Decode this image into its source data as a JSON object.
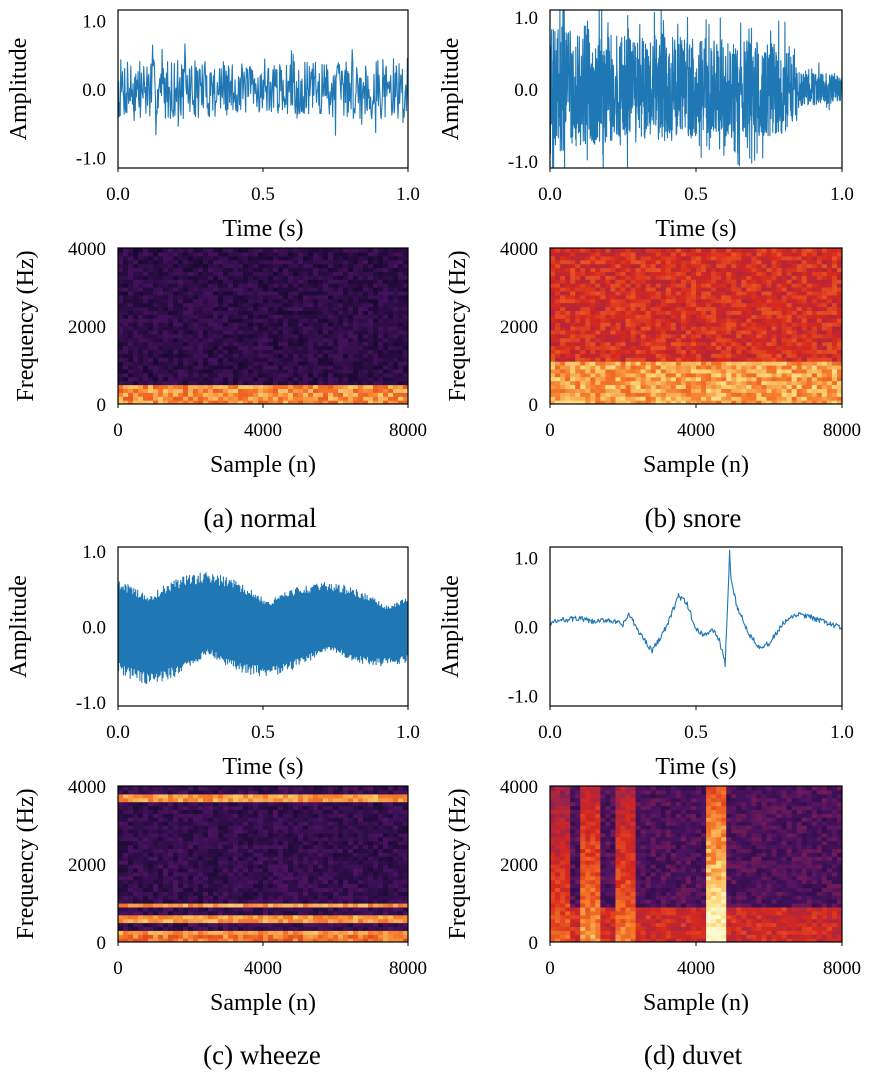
{
  "colors": {
    "waveform": "#1f77b4",
    "axis": "#000000"
  },
  "chart_data": [
    {
      "id": "a-wave",
      "type": "line",
      "panel": "a",
      "signal": "normal",
      "xlabel": "Time (s)",
      "ylabel": "Amplitude",
      "xlim": [
        0.0,
        1.0
      ],
      "ylim": [
        -1.15,
        1.15
      ],
      "x_ticks": [
        "0.0",
        "0.5",
        "1.0"
      ],
      "y_ticks": [
        "1.0",
        "0.0",
        "-1.0"
      ],
      "series": [
        {
          "name": "normal",
          "style": "noise",
          "amplitude": 0.45,
          "peak": 0.85,
          "envelope": [
            [
              0,
              1
            ],
            [
              0.3,
              0.95
            ],
            [
              0.5,
              0.75
            ],
            [
              0.75,
              0.95
            ],
            [
              1,
              1
            ]
          ]
        }
      ]
    },
    {
      "id": "b-wave",
      "type": "line",
      "panel": "b",
      "signal": "snore",
      "xlabel": "Time (s)",
      "ylabel": "Amplitude",
      "xlim": [
        0.0,
        1.0
      ],
      "ylim": [
        -1.1,
        1.1
      ],
      "x_ticks": [
        "0.0",
        "0.5",
        "1.0"
      ],
      "y_ticks": [
        "1.0",
        "0.0",
        "-1.0"
      ],
      "series": [
        {
          "name": "snore",
          "style": "dense-noise",
          "amplitude": 0.75,
          "peak": 1.1,
          "envelope": [
            [
              0,
              1.2
            ],
            [
              0.2,
              1
            ],
            [
              0.5,
              0.95
            ],
            [
              0.82,
              0.85
            ],
            [
              0.85,
              0.35
            ],
            [
              1,
              0.25
            ]
          ]
        }
      ]
    },
    {
      "id": "c-wave",
      "type": "line",
      "panel": "c",
      "signal": "wheeze",
      "xlabel": "Time (s)",
      "ylabel": "Amplitude",
      "xlim": [
        0.0,
        1.0
      ],
      "ylim": [
        -1.05,
        1.05
      ],
      "x_ticks": [
        "0.0",
        "0.5",
        "1.0"
      ],
      "y_ticks": [
        "1.0",
        "0.0",
        "-1.0"
      ],
      "series": [
        {
          "name": "wheeze",
          "style": "tonal",
          "amplitude": 0.7,
          "peak": 0.85,
          "envelope": [
            [
              0,
              0.9
            ],
            [
              0.1,
              1
            ],
            [
              0.5,
              0.85
            ],
            [
              1,
              0.65
            ]
          ]
        }
      ]
    },
    {
      "id": "d-wave",
      "type": "line",
      "panel": "d",
      "signal": "duvet",
      "xlabel": "Time (s)",
      "ylabel": "Amplitude",
      "xlim": [
        0.0,
        1.0
      ],
      "ylim": [
        -1.15,
        1.15
      ],
      "x_ticks": [
        "0.0",
        "0.5",
        "1.0"
      ],
      "y_ticks": [
        "1.0",
        "0.0",
        "-1.0"
      ],
      "series": [
        {
          "name": "duvet",
          "style": "smooth",
          "points": [
            [
              0,
              0.05
            ],
            [
              0.05,
              0.1
            ],
            [
              0.1,
              0.12
            ],
            [
              0.15,
              0.06
            ],
            [
              0.2,
              0.1
            ],
            [
              0.25,
              0.02
            ],
            [
              0.27,
              0.18
            ],
            [
              0.3,
              -0.05
            ],
            [
              0.35,
              -0.35
            ],
            [
              0.4,
              0.0
            ],
            [
              0.44,
              0.45
            ],
            [
              0.47,
              0.32
            ],
            [
              0.5,
              -0.05
            ],
            [
              0.53,
              -0.12
            ],
            [
              0.56,
              -0.05
            ],
            [
              0.58,
              -0.2
            ],
            [
              0.6,
              -0.55
            ],
            [
              0.61,
              0.5
            ],
            [
              0.615,
              1.1
            ],
            [
              0.62,
              0.65
            ],
            [
              0.64,
              0.3
            ],
            [
              0.66,
              0.1
            ],
            [
              0.68,
              -0.1
            ],
            [
              0.72,
              -0.3
            ],
            [
              0.75,
              -0.25
            ],
            [
              0.8,
              0.05
            ],
            [
              0.85,
              0.18
            ],
            [
              0.9,
              0.12
            ],
            [
              0.95,
              0.05
            ],
            [
              1.0,
              -0.02
            ]
          ]
        }
      ]
    },
    {
      "id": "a-spec",
      "type": "heatmap",
      "panel": "a",
      "signal": "normal",
      "xlabel": "Sample (n)",
      "ylabel": "Frequency (Hz)",
      "xlim": [
        0,
        8000
      ],
      "ylim": [
        0,
        4000
      ],
      "x_ticks": [
        "0",
        "4000",
        "8000"
      ],
      "y_ticks": [
        "4000",
        "2000",
        "0"
      ],
      "colormap": "inferno-like",
      "profile": {
        "base": 0.14,
        "low_band_hz": 500,
        "low_band_level": 0.82,
        "bands": [],
        "events": []
      }
    },
    {
      "id": "b-spec",
      "type": "heatmap",
      "panel": "b",
      "signal": "snore",
      "xlabel": "Sample (n)",
      "ylabel": "Frequency (Hz)",
      "xlim": [
        0,
        8000
      ],
      "ylim": [
        0,
        4000
      ],
      "x_ticks": [
        "0",
        "4000",
        "8000"
      ],
      "y_ticks": [
        "4000",
        "2000",
        "0"
      ],
      "colormap": "inferno-like",
      "profile": {
        "base": 0.62,
        "low_band_hz": 1200,
        "low_band_level": 0.85,
        "bands": [],
        "events": []
      }
    },
    {
      "id": "c-spec",
      "type": "heatmap",
      "panel": "c",
      "signal": "wheeze",
      "xlabel": "Sample (n)",
      "ylabel": "Frequency (Hz)",
      "xlim": [
        0,
        8000
      ],
      "ylim": [
        0,
        4000
      ],
      "x_ticks": [
        "0",
        "4000",
        "8000"
      ],
      "y_ticks": [
        "4000",
        "2000",
        "0"
      ],
      "colormap": "inferno-like",
      "profile": {
        "base": 0.17,
        "low_band_hz": 350,
        "low_band_level": 0.78,
        "bands": [
          250,
          650,
          1000,
          3900
        ],
        "events": []
      }
    },
    {
      "id": "d-spec",
      "type": "heatmap",
      "panel": "d",
      "signal": "duvet",
      "xlabel": "Sample (n)",
      "ylabel": "Frequency (Hz)",
      "xlim": [
        0,
        8000
      ],
      "ylim": [
        0,
        4000
      ],
      "x_ticks": [
        "0",
        "4000",
        "8000"
      ],
      "y_ticks": [
        "4000",
        "2000",
        "0"
      ],
      "colormap": "inferno-like",
      "profile": {
        "base": 0.26,
        "low_band_hz": 900,
        "low_band_level": 0.6,
        "bands": [],
        "events": [
          [
            4500,
            0.72
          ],
          [
            1100,
            0.55
          ],
          [
            2100,
            0.5
          ],
          [
            250,
            0.45
          ]
        ]
      }
    }
  ],
  "captions": {
    "a": "(a) normal",
    "b": "(b) snore",
    "c": "(c) wheeze",
    "d": "(d) duvet"
  }
}
